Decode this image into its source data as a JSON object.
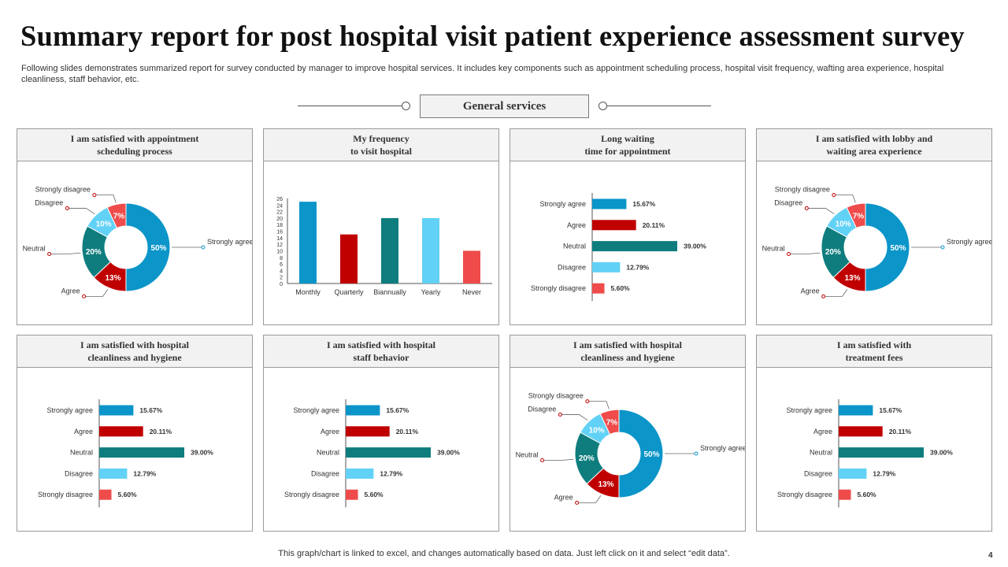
{
  "title": "Summary report for post hospital visit patient experience assessment survey",
  "subtitle": "Following slides demonstrates summarized report for survey conducted by manager to improve hospital services. It includes key components such as appointment scheduling process, hospital visit frequency, wafting area experience, hospital cleanliness, staff behavior, etc.",
  "section_label": "General services",
  "footer": "This graph/chart is linked to excel,  and changes automatically based on data. Just left click on it and select “edit data”.",
  "page_number": "4",
  "colors": {
    "strongly_agree": "#0b95c9",
    "agree": "#c00000",
    "neutral": "#0f7d7e",
    "disagree": "#62d1f6",
    "strongly_disagree": "#ef4b4b"
  },
  "chart_data": [
    {
      "type": "pie",
      "title_lines": [
        "I am  satisfied with appointment",
        "scheduling process"
      ],
      "slices": [
        {
          "label": "Strongly agree",
          "value": 50,
          "display": "50%",
          "color": "#0b95c9"
        },
        {
          "label": "Agree",
          "value": 13,
          "display": "13%",
          "color": "#c00000"
        },
        {
          "label": "Neutral",
          "value": 20,
          "display": "20%",
          "color": "#0f7d7e"
        },
        {
          "label": "Disagree",
          "value": 10,
          "display": "10%",
          "color": "#62d1f6"
        },
        {
          "label": "Strongly disagree",
          "value": 7,
          "display": "7%",
          "color": "#ef4b4b"
        }
      ]
    },
    {
      "type": "bar",
      "title_lines": [
        "My  frequency",
        "to visit hospital"
      ],
      "categories": [
        "Monthly",
        "Quarterly",
        "Biannually",
        "Yearly",
        "Never"
      ],
      "values": [
        25,
        15,
        20,
        20,
        10
      ],
      "colors": [
        "#0b95c9",
        "#c00000",
        "#0f7d7e",
        "#62d1f6",
        "#ef4b4b"
      ],
      "ylim": [
        0,
        26
      ],
      "yticks": [
        0,
        2,
        4,
        6,
        8,
        10,
        12,
        14,
        16,
        18,
        20,
        22,
        24,
        26
      ]
    },
    {
      "type": "hbar",
      "title_lines": [
        "Long waiting",
        "time for appointment"
      ],
      "categories": [
        "Strongly agree",
        "Agree",
        "Neutral",
        "Disagree",
        "Strongly disagree"
      ],
      "values": [
        15.67,
        20.11,
        39.0,
        12.79,
        5.6
      ],
      "labels": [
        "15.67%",
        "20.11%",
        "39.00%",
        "12.79%",
        "5.60%"
      ],
      "colors": [
        "#0b95c9",
        "#c00000",
        "#0f7d7e",
        "#62d1f6",
        "#ef4b4b"
      ]
    },
    {
      "type": "pie",
      "title_lines": [
        "I am  satisfied with  lobby  and",
        "waiting area experience"
      ],
      "slices": [
        {
          "label": "Strongly agree",
          "value": 50,
          "display": "50%",
          "color": "#0b95c9"
        },
        {
          "label": "Agree",
          "value": 13,
          "display": "13%",
          "color": "#c00000"
        },
        {
          "label": "Neutral",
          "value": 20,
          "display": "20%",
          "color": "#0f7d7e"
        },
        {
          "label": "Disagree",
          "value": 10,
          "display": "10%",
          "color": "#62d1f6"
        },
        {
          "label": "Strongly disagree",
          "value": 7,
          "display": "7%",
          "color": "#ef4b4b"
        }
      ]
    },
    {
      "type": "hbar",
      "title_lines": [
        "I am  satisfied with  hospital",
        "cleanliness and  hygiene"
      ],
      "categories": [
        "Strongly agree",
        "Agree",
        "Neutral",
        "Disagree",
        "Strongly disagree"
      ],
      "values": [
        15.67,
        20.11,
        39.0,
        12.79,
        5.6
      ],
      "labels": [
        "15.67%",
        "20.11%",
        "39.00%",
        "12.79%",
        "5.60%"
      ],
      "colors": [
        "#0b95c9",
        "#c00000",
        "#0f7d7e",
        "#62d1f6",
        "#ef4b4b"
      ]
    },
    {
      "type": "hbar",
      "title_lines": [
        "I am  satisfied with  hospital",
        "staff behavior"
      ],
      "categories": [
        "Strongly agree",
        "Agree",
        "Neutral",
        "Disagree",
        "Strongly disagree"
      ],
      "values": [
        15.67,
        20.11,
        39.0,
        12.79,
        5.6
      ],
      "labels": [
        "15.67%",
        "20.11%",
        "39.00%",
        "12.79%",
        "5.60%"
      ],
      "colors": [
        "#0b95c9",
        "#c00000",
        "#0f7d7e",
        "#62d1f6",
        "#ef4b4b"
      ]
    },
    {
      "type": "pie",
      "title_lines": [
        "I am  satisfied with  hospital",
        "cleanliness and  hygiene"
      ],
      "slices": [
        {
          "label": "Strongly agree",
          "value": 50,
          "display": "50%",
          "color": "#0b95c9"
        },
        {
          "label": "Agree",
          "value": 13,
          "display": "13%",
          "color": "#c00000"
        },
        {
          "label": "Neutral",
          "value": 20,
          "display": "20%",
          "color": "#0f7d7e"
        },
        {
          "label": "Disagree",
          "value": 10,
          "display": "10%",
          "color": "#62d1f6"
        },
        {
          "label": "Strongly disagree",
          "value": 7,
          "display": "7%",
          "color": "#ef4b4b"
        }
      ]
    },
    {
      "type": "hbar",
      "title_lines": [
        "I am  satisfied with",
        "treatment  fees"
      ],
      "categories": [
        "Strongly agree",
        "Agree",
        "Neutral",
        "Disagree",
        "Strongly disagree"
      ],
      "values": [
        15.67,
        20.11,
        39.0,
        12.79,
        5.6
      ],
      "labels": [
        "15.67%",
        "20.11%",
        "39.00%",
        "12.79%",
        "5.60%"
      ],
      "colors": [
        "#0b95c9",
        "#c00000",
        "#0f7d7e",
        "#62d1f6",
        "#ef4b4b"
      ]
    }
  ]
}
